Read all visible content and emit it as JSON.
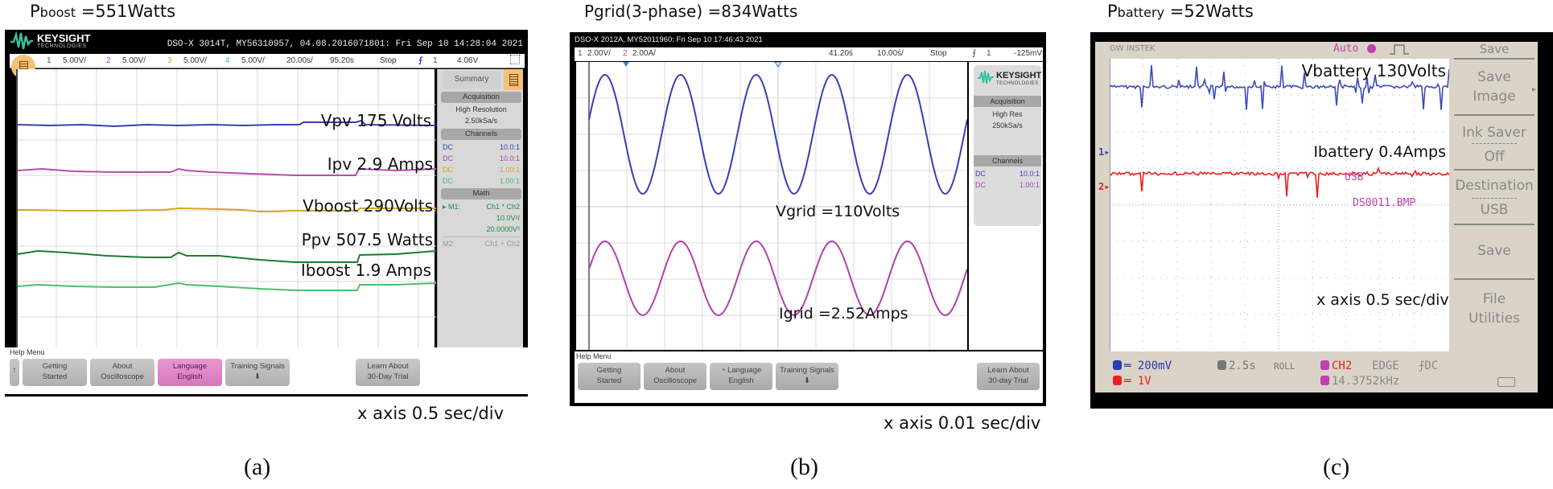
{
  "figure": {
    "panels": [
      {
        "id": "a",
        "title_main": "P",
        "title_sub": "boost",
        "title_rest": " =551Watts",
        "caption": "x axis 0.5 sec/div",
        "label": "(a)",
        "scope": {
          "brand": "KEYSIGHT",
          "brand_sub": "TECHNOLOGIES",
          "id_line": "DSO-X 3014T, MY56310957, 04.08.2016071801: Fri Sep 10 14:28:04 2021",
          "channel_bar": {
            "ch1_num": "1",
            "ch1_scale": "5.00V/",
            "ch2_num": "2",
            "ch2_scale": "5.00V/",
            "ch3_num": "3",
            "ch3_scale": "5.00V/",
            "ch4_num": "4",
            "ch4_scale": "5.00V/",
            "timebase": "20.00s/",
            "delay": "95.20s",
            "run_state": "Stop",
            "trigger_symbol": "⨍",
            "trigger_channel": "1",
            "trigger_level": "4.06V"
          },
          "side_panel": {
            "tab": "Summary",
            "acquisition_header": "Acquisition",
            "acquisition_mode": "High Resolution",
            "sample_rate": "2.50kSa/s",
            "channels_header": "Channels",
            "channels": [
              {
                "coupling": "DC",
                "probe": "10.0:1",
                "color": "#3a3fb0"
              },
              {
                "coupling": "DC",
                "probe": "10.0:1",
                "color": "#b040b0"
              },
              {
                "coupling": "DC",
                "probe": "1.00:1",
                "color": "#d4a820"
              },
              {
                "coupling": "DC",
                "probe": "1.00:1",
                "color": "#40c070"
              }
            ],
            "math_header": "Math",
            "m1_label": "▸ M1:",
            "m1_expr": "Ch1 * Ch2",
            "m1_scale": "10.0V²/",
            "m1_offset": "20.0000V²",
            "m2_label": "M2:",
            "m2_expr": "Ch1 + Ch2"
          },
          "help_menu": {
            "title": "Help Menu",
            "buttons": [
              {
                "line1": "↑",
                "line2": ""
              },
              {
                "line1": "Getting",
                "line2": "Started"
              },
              {
                "line1": "About",
                "line2": "Oscilloscope"
              },
              {
                "line1": "Language",
                "line2": "English"
              },
              {
                "line1": "Training Signals",
                "line2": "⬇"
              },
              {
                "line1": "Learn About",
                "line2": "30-Day Trial"
              }
            ]
          },
          "traces": [
            {
              "name": "Vpv",
              "label": "Vpv 175 Volts",
              "color": "#3a3fb0"
            },
            {
              "name": "Ipv",
              "label": "Ipv 2.9 Amps",
              "color": "#b050b0"
            },
            {
              "name": "Vboost",
              "label": "Vboost 290Volts",
              "color": "#d4a820"
            },
            {
              "name": "Ppv",
              "label": "Ppv 507.5 Watts",
              "color": "#1e7a2e"
            },
            {
              "name": "Iboost",
              "label": "Iboost 1.9 Amps",
              "color": "#4cbf6a"
            }
          ]
        }
      },
      {
        "id": "b",
        "title_main": "Pgrid(3-phase)",
        "title_rest": " =834Watts",
        "caption": "x axis 0.01 sec/div",
        "label": "(b)",
        "scope": {
          "brand": "KEYSIGHT",
          "brand_sub": "TECHNOLOGIES",
          "id_line": "DSO-X 2012A, MY52011960: Fri Sep 10 17:46:43 2021",
          "channel_bar": {
            "ch1_num": "1",
            "ch1_scale": "2.00V/",
            "ch2_num": "2",
            "ch2_scale": "2.00A/",
            "delay": "41.20ś",
            "timebase": "10.00ś/",
            "run_state": "Stop",
            "trigger_symbol": "⨍",
            "trigger_channel": "1",
            "trigger_level": "-125mV"
          },
          "side_panel": {
            "acquisition_header": "Acquisition",
            "acquisition_mode": "High Res",
            "sample_rate": "250kSa/s",
            "channels_header": "Channels",
            "channels": [
              {
                "coupling": "DC",
                "probe": "10.0:1",
                "color": "#3a3fb0"
              },
              {
                "coupling": "DC",
                "probe": "1.00:1",
                "color": "#b040b0"
              }
            ]
          },
          "help_menu": {
            "title": "Help Menu",
            "buttons": [
              {
                "line1": "Getting",
                "line2": "Started"
              },
              {
                "line1": "About",
                "line2": "Oscilloscope"
              },
              {
                "line1": "Language",
                "line2": "English"
              },
              {
                "line1": "Training Signals",
                "line2": "⬇"
              },
              {
                "line1": "Learn About",
                "line2": "30-day Trial"
              }
            ]
          },
          "traces": [
            {
              "name": "Vgrid",
              "label": "Vgrid =110Volts",
              "color": "#3a3fb0"
            },
            {
              "name": "Igrid",
              "label": "Igrid =2.52Amps",
              "color": "#b040b0"
            }
          ]
        }
      },
      {
        "id": "c",
        "title_main": "P",
        "title_sub": "battery",
        "title_rest": " =52Watts",
        "label": "(c)",
        "scope": {
          "brand": "GW INSTEK",
          "trigger_mode": "Auto",
          "menu": {
            "header": "Save",
            "items": [
              {
                "line1": "Save",
                "line2": "Image"
              },
              {
                "line1": "Ink Saver",
                "line2": "Off"
              },
              {
                "line1": "Destination",
                "line2": "USB"
              },
              {
                "line1": "Save",
                "line2": ""
              },
              {
                "line1": "File",
                "line2": "Utilities"
              }
            ]
          },
          "overlay": {
            "usb": "USB",
            "filename": "DS0011.BMP",
            "caption": "x axis 0.5 sec/div"
          },
          "status": {
            "ch1": "═ 200mV",
            "ch2": "═ 1V",
            "timebase": "2.5s",
            "mode": "ROLL",
            "trigger_source": "CH2",
            "trigger_type": "EDGE",
            "trigger_coupling": "⨍DC",
            "frequency": "14.3752kHz"
          },
          "traces": [
            {
              "name": "Vbattery",
              "label": "Vbattery 130Volts",
              "color": "#3a4cb8"
            },
            {
              "name": "Ibattery",
              "label": "Ibattery 0.4Amps",
              "color": "#e82020"
            }
          ]
        }
      }
    ]
  },
  "chart_data": [
    {
      "type": "line",
      "title": "Pboost =551Watts",
      "xlabel": "x axis 0.5 sec/div",
      "grid": true,
      "series": [
        {
          "name": "Vpv",
          "value_label": "175 Volts",
          "values": [
            175
          ]
        },
        {
          "name": "Ipv",
          "value_label": "2.9 Amps",
          "values": [
            2.9
          ]
        },
        {
          "name": "Vboost",
          "value_label": "290 Volts",
          "values": [
            290
          ]
        },
        {
          "name": "Ppv",
          "value_label": "507.5 Watts",
          "values": [
            507.5
          ]
        },
        {
          "name": "Iboost",
          "value_label": "1.9 Amps",
          "values": [
            1.9
          ]
        }
      ],
      "annotations": [
        "(a)"
      ]
    },
    {
      "type": "line",
      "title": "Pgrid(3-phase) =834Watts",
      "xlabel": "x axis 0.01 sec/div",
      "grid": true,
      "series": [
        {
          "name": "Vgrid",
          "value_label": "110 Volts",
          "waveform": "sine",
          "cycles_visible": 5
        },
        {
          "name": "Igrid",
          "value_label": "2.52 Amps",
          "waveform": "sine",
          "cycles_visible": 5
        }
      ],
      "annotations": [
        "(b)"
      ]
    },
    {
      "type": "line",
      "title": "Pbattery =52Watts",
      "xlabel": "x axis 0.5 sec/div",
      "grid": true,
      "series": [
        {
          "name": "Vbattery",
          "value_label": "130 Volts",
          "values": [
            130
          ]
        },
        {
          "name": "Ibattery",
          "value_label": "0.4 Amps",
          "values": [
            0.4
          ]
        }
      ],
      "annotations": [
        "(c)"
      ]
    }
  ]
}
